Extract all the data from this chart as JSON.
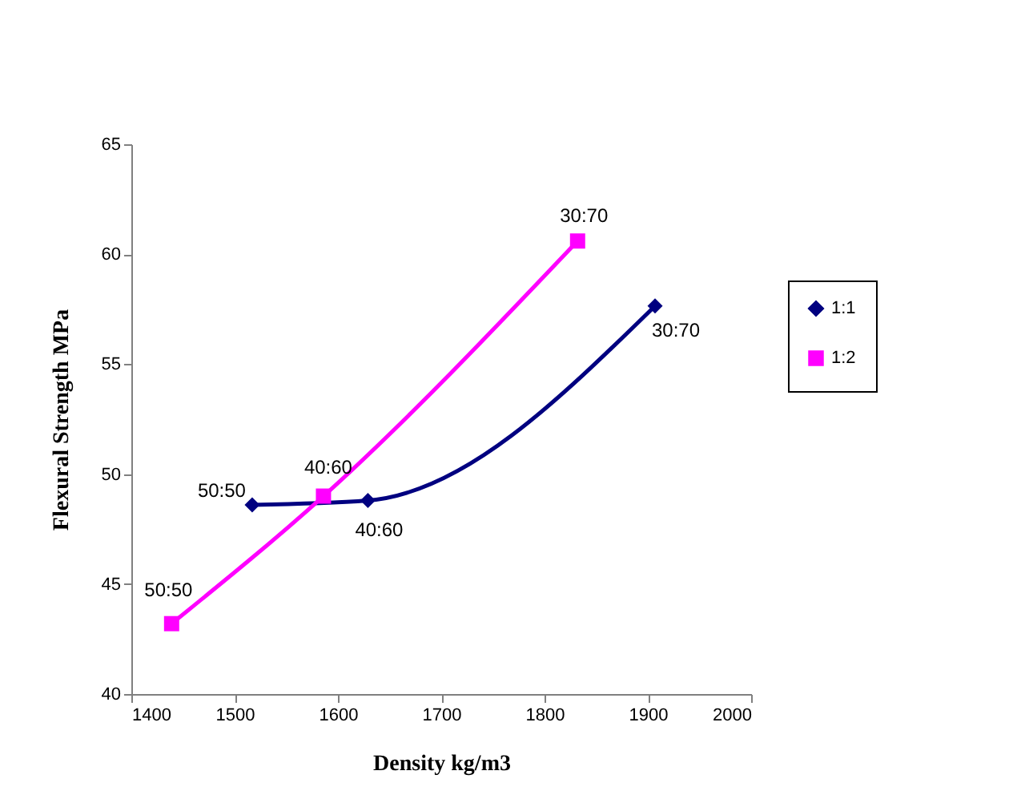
{
  "chart_data": {
    "type": "line",
    "xlabel": "Density kg/m3",
    "ylabel": "Flexural Strength MPa",
    "series": [
      {
        "name": "1:1",
        "color": "#000080",
        "marker": "diamond",
        "x": [
          1517,
          1629,
          1907
        ],
        "values": [
          48.6,
          48.8,
          57.65
        ]
      },
      {
        "name": "1:2",
        "color": "#ff00ff",
        "marker": "square",
        "x": [
          1439,
          1586,
          1832
        ],
        "values": [
          43.2,
          49.0,
          60.6
        ]
      }
    ],
    "xlim": [
      1400,
      2000
    ],
    "xticks": [
      1400,
      1500,
      1600,
      1700,
      1800,
      1900,
      2000
    ],
    "ylim": [
      40,
      65
    ],
    "yticks": [
      40,
      45,
      50,
      55,
      60,
      65
    ],
    "grid": false,
    "legend": "right",
    "line_style": "solid",
    "annotations": [
      {
        "text": "50:50",
        "x": 1517,
        "y": 48.6
      },
      {
        "text": "40:60",
        "x": 1629,
        "y": 48.8
      },
      {
        "text": "30:70",
        "x": 1907,
        "y": 57.65
      },
      {
        "text": "50:50",
        "x": 1439,
        "y": 43.2
      },
      {
        "text": "40:60",
        "x": 1586,
        "y": 49.0
      },
      {
        "text": "30:70",
        "x": 1832,
        "y": 60.6
      }
    ]
  }
}
